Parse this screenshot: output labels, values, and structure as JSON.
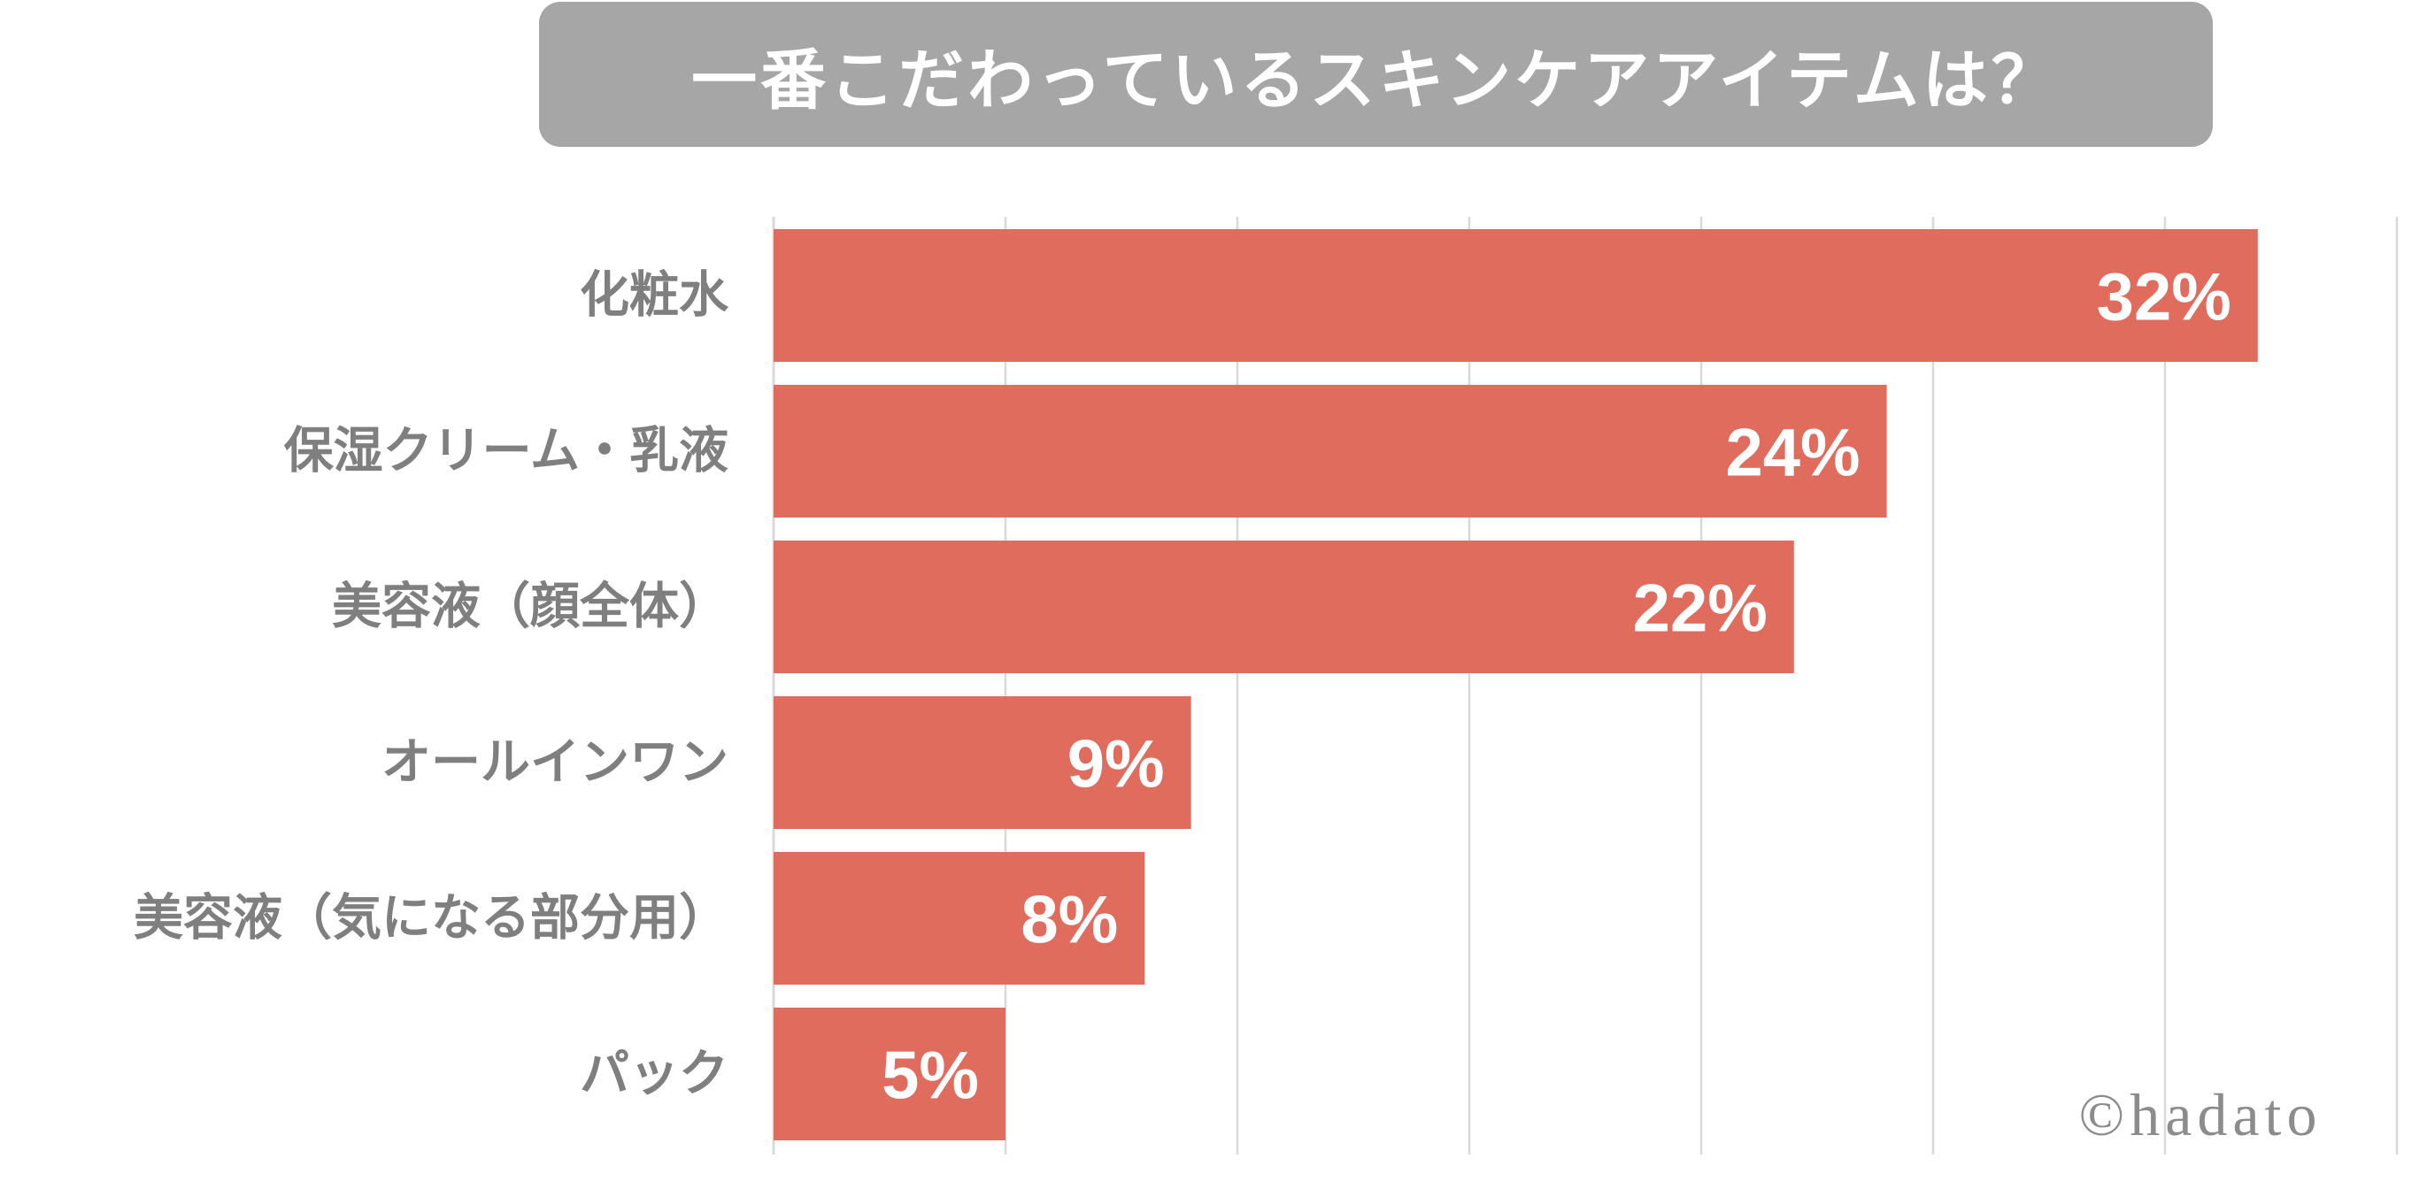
{
  "chart_data": {
    "type": "bar",
    "orientation": "horizontal",
    "title": "一番こだわっているスキンケアアイテムは？",
    "categories": [
      "化粧水",
      "保湿クリーム・乳液",
      "美容液（顔全体）",
      "オールインワン",
      "美容液（気になる部分用）",
      "パック"
    ],
    "values": [
      32,
      24,
      22,
      9,
      8,
      5
    ],
    "value_labels": [
      "32%",
      "24%",
      "22%",
      "9%",
      "8%",
      "5%"
    ],
    "xlim": [
      0,
      35
    ],
    "grid_step": 5,
    "grid": true,
    "bar_color": "#e06c5e",
    "grid_color": "#d9d9d9",
    "label_color": "#7f7f7f"
  },
  "watermark": "©hadato"
}
